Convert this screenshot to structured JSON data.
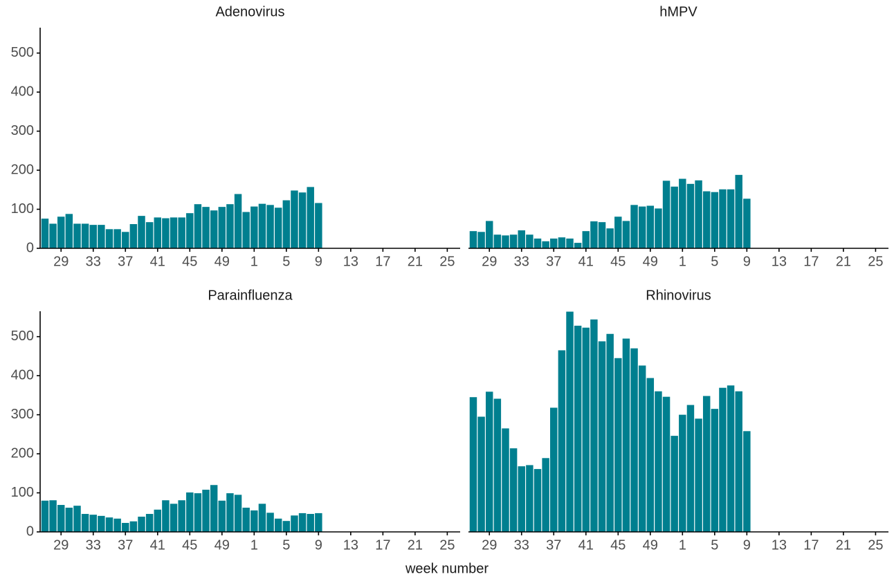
{
  "chart_data": [
    {
      "type": "bar",
      "title": "Adenovirus",
      "categories": [
        null,
        null,
        "29",
        null,
        null,
        null,
        "33",
        null,
        null,
        null,
        "37",
        null,
        null,
        null,
        "41",
        null,
        null,
        null,
        "45",
        null,
        null,
        null,
        "49",
        null,
        null,
        null,
        "1",
        null,
        null,
        null,
        "5",
        null,
        null,
        null,
        "9",
        null,
        null,
        null,
        "13",
        null,
        null,
        null,
        "17",
        null,
        null,
        null,
        "21",
        null,
        null,
        null,
        "25",
        null
      ],
      "values": [
        76,
        63,
        81,
        88,
        63,
        63,
        60,
        60,
        49,
        49,
        42,
        62,
        83,
        67,
        79,
        77,
        79,
        79,
        90,
        113,
        106,
        97,
        106,
        113,
        139,
        93,
        107,
        114,
        111,
        104,
        123,
        148,
        143,
        157,
        116,
        null,
        null,
        null,
        null,
        null,
        null,
        null,
        null,
        null,
        null,
        null,
        null,
        null,
        null,
        null,
        null,
        null
      ]
    },
    {
      "type": "bar",
      "title": "hMPV",
      "categories": [
        null,
        null,
        "29",
        null,
        null,
        null,
        "33",
        null,
        null,
        null,
        "37",
        null,
        null,
        null,
        "41",
        null,
        null,
        null,
        "45",
        null,
        null,
        null,
        "49",
        null,
        null,
        null,
        "1",
        null,
        null,
        null,
        "5",
        null,
        null,
        null,
        "9",
        null,
        null,
        null,
        "13",
        null,
        null,
        null,
        "17",
        null,
        null,
        null,
        "21",
        null,
        null,
        null,
        "25",
        null
      ],
      "values": [
        44,
        42,
        70,
        35,
        33,
        35,
        46,
        35,
        25,
        18,
        25,
        28,
        25,
        14,
        44,
        69,
        67,
        51,
        81,
        70,
        111,
        107,
        109,
        102,
        173,
        158,
        178,
        165,
        174,
        146,
        144,
        151,
        151,
        188,
        127,
        null,
        null,
        null,
        null,
        null,
        null,
        null,
        null,
        null,
        null,
        null,
        null,
        null,
        null,
        null,
        null,
        null
      ]
    },
    {
      "type": "bar",
      "title": "Parainfluenza",
      "categories": [
        null,
        null,
        "29",
        null,
        null,
        null,
        "33",
        null,
        null,
        null,
        "37",
        null,
        null,
        null,
        "41",
        null,
        null,
        null,
        "45",
        null,
        null,
        null,
        "49",
        null,
        null,
        null,
        "1",
        null,
        null,
        null,
        "5",
        null,
        null,
        null,
        "9",
        null,
        null,
        null,
        "13",
        null,
        null,
        null,
        "17",
        null,
        null,
        null,
        "21",
        null,
        null,
        null,
        "25",
        null
      ],
      "values": [
        80,
        81,
        69,
        62,
        67,
        46,
        44,
        41,
        37,
        34,
        23,
        27,
        39,
        46,
        57,
        81,
        72,
        81,
        101,
        99,
        108,
        120,
        80,
        99,
        95,
        62,
        55,
        72,
        49,
        34,
        28,
        42,
        48,
        46,
        48,
        null,
        null,
        null,
        null,
        null,
        null,
        null,
        null,
        null,
        null,
        null,
        null,
        null,
        null,
        null,
        null,
        null
      ]
    },
    {
      "type": "bar",
      "title": "Rhinovirus",
      "categories": [
        null,
        null,
        "29",
        null,
        null,
        null,
        "33",
        null,
        null,
        null,
        "37",
        null,
        null,
        null,
        "41",
        null,
        null,
        null,
        "45",
        null,
        null,
        null,
        "49",
        null,
        null,
        null,
        "1",
        null,
        null,
        null,
        "5",
        null,
        null,
        null,
        "9",
        null,
        null,
        null,
        "13",
        null,
        null,
        null,
        "17",
        null,
        null,
        null,
        "21",
        null,
        null,
        null,
        "25",
        null
      ],
      "values": [
        345,
        295,
        359,
        341,
        265,
        214,
        168,
        171,
        161,
        189,
        318,
        465,
        564,
        528,
        523,
        544,
        488,
        507,
        445,
        495,
        470,
        426,
        394,
        360,
        346,
        246,
        300,
        325,
        290,
        348,
        315,
        369,
        375,
        360,
        258,
        null,
        null,
        null,
        null,
        null,
        null,
        null,
        null,
        null,
        null,
        null,
        null,
        null,
        null,
        null,
        null,
        null
      ]
    }
  ],
  "ylim": [
    0,
    565
  ],
  "yticks": [
    0,
    100,
    200,
    300,
    400,
    500
  ],
  "xlabel": "week number",
  "color": "#007f8f"
}
